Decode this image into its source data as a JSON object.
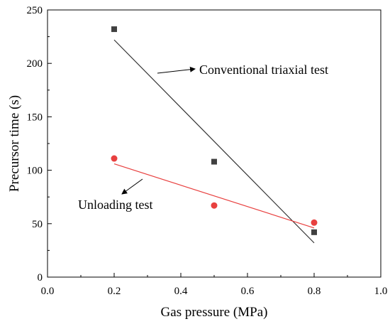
{
  "chart_data": {
    "type": "scatter",
    "xlabel": "Gas pressure (MPa)",
    "ylabel": "Precursor time (s)",
    "xlim": [
      0.0,
      1.0
    ],
    "ylim": [
      0,
      250
    ],
    "xticks": [
      "0.0",
      "0.2",
      "0.4",
      "0.6",
      "0.8",
      "1.0"
    ],
    "yticks": [
      "0",
      "50",
      "100",
      "150",
      "200",
      "250"
    ],
    "grid": false,
    "series": [
      {
        "name": "Conventional triaxial test",
        "marker": "square",
        "color": "#404040",
        "line_color": "#333333",
        "points": [
          {
            "x": 0.2,
            "y": 232
          },
          {
            "x": 0.5,
            "y": 108
          },
          {
            "x": 0.8,
            "y": 42
          }
        ],
        "fit_line": [
          {
            "x": 0.2,
            "y": 222
          },
          {
            "x": 0.8,
            "y": 32
          }
        ]
      },
      {
        "name": "Unloading test",
        "marker": "circle",
        "color": "#e8403f",
        "line_color": "#e8403f",
        "points": [
          {
            "x": 0.2,
            "y": 111
          },
          {
            "x": 0.5,
            "y": 67
          },
          {
            "x": 0.8,
            "y": 51
          }
        ],
        "fit_line": [
          {
            "x": 0.2,
            "y": 106
          },
          {
            "x": 0.8,
            "y": 46
          }
        ]
      }
    ],
    "annotations": [
      {
        "text": "Conventional triaxial test",
        "series": 0
      },
      {
        "text": "Unloading test",
        "series": 1
      }
    ]
  }
}
